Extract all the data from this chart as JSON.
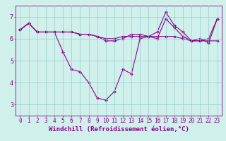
{
  "title": "",
  "xlabel": "Windchill (Refroidissement éolien,°C)",
  "ylabel": "",
  "xlim": [
    -0.5,
    23.5
  ],
  "ylim": [
    2.5,
    7.5
  ],
  "yticks": [
    3,
    4,
    5,
    6,
    7
  ],
  "xticks": [
    0,
    1,
    2,
    3,
    4,
    5,
    6,
    7,
    8,
    9,
    10,
    11,
    12,
    13,
    14,
    15,
    16,
    17,
    18,
    19,
    20,
    21,
    22,
    23
  ],
  "bg_color": "#cff0eb",
  "line_color": "#880088",
  "grid_color": "#99cccc",
  "line1": [
    6.4,
    6.7,
    6.3,
    6.3,
    6.3,
    5.4,
    4.6,
    4.5,
    4.0,
    3.3,
    3.2,
    3.6,
    4.6,
    4.4,
    6.0,
    6.1,
    6.0,
    6.9,
    6.5,
    6.1,
    5.9,
    5.9,
    6.0,
    6.9
  ],
  "line2": [
    6.4,
    6.7,
    6.3,
    6.3,
    6.3,
    6.3,
    6.3,
    6.2,
    6.2,
    6.1,
    6.0,
    6.0,
    6.1,
    6.1,
    6.1,
    6.1,
    6.1,
    6.1,
    6.1,
    6.0,
    5.9,
    5.9,
    5.9,
    5.9
  ],
  "line3": [
    6.4,
    6.7,
    6.3,
    6.3,
    6.3,
    6.3,
    6.3,
    6.2,
    6.2,
    6.1,
    5.9,
    5.9,
    6.0,
    6.2,
    6.2,
    6.1,
    6.3,
    7.2,
    6.6,
    6.3,
    5.9,
    6.0,
    5.8,
    6.9
  ],
  "tick_fontsize": 5.5,
  "label_fontsize": 6.5
}
